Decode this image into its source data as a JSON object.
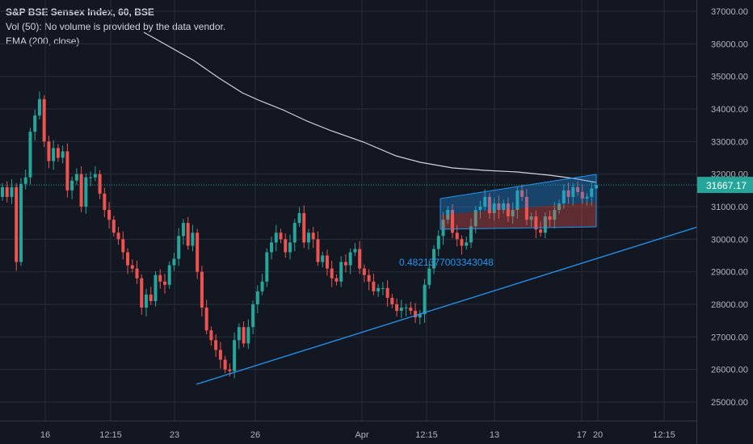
{
  "legend": {
    "symbol": "S&P BSE Sensex Index, 60, BSE",
    "volume": "Vol (50): No volume is provided by the data vendor.",
    "ema": "EMA (200, close)"
  },
  "chart_data": {
    "type": "candlestick",
    "title": "S&P BSE Sensex Index, 60, BSE",
    "ylim": [
      24600,
      37400
    ],
    "y_ticks": [
      25000,
      26000,
      27000,
      28000,
      29000,
      30000,
      31000,
      32000,
      33000,
      34000,
      35000,
      36000,
      37000
    ],
    "y_tick_labels": [
      "25000.00",
      "26000.00",
      "27000.00",
      "28000.00",
      "29000.00",
      "30000.00",
      "31000.00",
      "32000.00",
      "33000.00",
      "34000.00",
      "35000.00",
      "36000.00",
      "37000.00"
    ],
    "x_tick_labels": [
      "16",
      "12:15",
      "23",
      "26",
      "Apr",
      "12:15",
      "13",
      "17",
      "20",
      "12:15"
    ],
    "last_price": 31667.17,
    "last_price_label": "31667.17",
    "ema_label": "EMA (200, close)",
    "channel_label": "0.4821377003343048",
    "candles_closes": [
      31600,
      31300,
      31600,
      29300,
      31700,
      31900,
      33300,
      33800,
      34300,
      33000,
      32400,
      32800,
      32500,
      32700,
      31500,
      31800,
      32000,
      31000,
      31900,
      31900,
      32000,
      31400,
      30900,
      30600,
      30200,
      30000,
      29600,
      29200,
      29100,
      28800,
      27900,
      28300,
      28100,
      28900,
      28700,
      28600,
      29200,
      29400,
      30100,
      30500,
      29800,
      30200,
      29000,
      27900,
      27200,
      26900,
      26600,
      26300,
      26000,
      25950,
      26900,
      27300,
      26800,
      27300,
      28000,
      28400,
      28700,
      29600,
      29900,
      30200,
      30000,
      29600,
      29900,
      30500,
      30800,
      29900,
      30200,
      30000,
      29300,
      29500,
      29100,
      28800,
      28700,
      29300,
      29200,
      29600,
      29700,
      29100,
      28900,
      28700,
      28400,
      28500,
      28500,
      28200,
      28000,
      27800,
      27900,
      27900,
      27800,
      27600,
      27700,
      28600,
      29100,
      29700,
      30100,
      30600,
      30900,
      30200,
      30000,
      29800,
      29900,
      30400,
      30900,
      31000,
      31300,
      30800,
      31100,
      30900,
      31100,
      30700,
      30900,
      31500,
      31300,
      30600,
      30700,
      30300,
      30200,
      30700,
      30600,
      30900,
      31100,
      31500,
      31300,
      31600,
      31450,
      31250,
      31300,
      31560,
      31667.17
    ],
    "ema_series": "EMA (200, close)",
    "y_axis_position": "right"
  },
  "colors": {
    "background": "#131722",
    "up": "#26a69a",
    "down": "#ef5350",
    "ema": "#d1d4dc",
    "trendline": "#2196f3",
    "channel_upper_fill": "rgba(33,150,243,0.35)",
    "channel_lower_fill": "rgba(239,83,80,0.35)",
    "price_label_bg": "#26a69a",
    "axis_text": "#b2b5be",
    "grid": "#2a2e39"
  }
}
